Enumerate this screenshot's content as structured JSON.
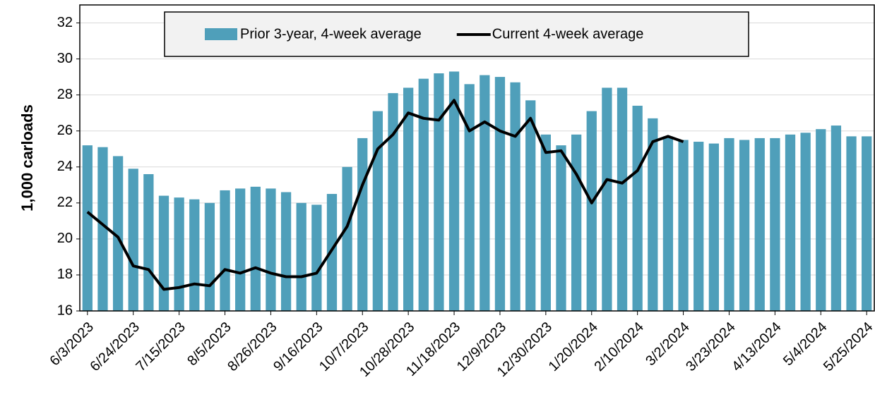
{
  "chart_data": {
    "type": "bar",
    "y_label": "1,000 carloads",
    "categories": [
      "6/3/2023",
      null,
      null,
      "6/24/2023",
      null,
      null,
      "7/15/2023",
      null,
      null,
      "8/5/2023",
      null,
      null,
      "8/26/2023",
      null,
      null,
      "9/16/2023",
      null,
      null,
      "10/7/2023",
      null,
      null,
      "10/28/2023",
      null,
      null,
      "11/18/2023",
      null,
      null,
      "12/9/2023",
      null,
      null,
      "12/30/2023",
      null,
      null,
      "1/20/2024",
      null,
      null,
      "2/10/2024",
      null,
      null,
      "3/2/2024",
      null,
      null,
      "3/23/2024",
      null,
      null,
      "4/13/2024",
      null,
      null,
      "5/4/2024",
      null,
      null,
      "5/25/2024"
    ],
    "series": [
      {
        "name": "Prior 3-year, 4-week average",
        "type": "bar",
        "color": "#4f9fba",
        "values": [
          25.2,
          25.1,
          24.6,
          23.9,
          23.6,
          22.4,
          22.3,
          22.2,
          22.0,
          22.7,
          22.8,
          22.9,
          22.8,
          22.6,
          22.0,
          21.9,
          22.5,
          24.0,
          25.6,
          27.1,
          28.1,
          28.4,
          28.9,
          29.2,
          29.3,
          28.6,
          29.1,
          29.0,
          28.7,
          27.7,
          25.8,
          25.2,
          25.8,
          27.1,
          28.4,
          28.4,
          27.4,
          26.7,
          25.7,
          25.5,
          25.4,
          25.3,
          25.6,
          25.5,
          25.6,
          25.6,
          25.8,
          25.9,
          26.1,
          26.3,
          25.7,
          25.7
        ]
      },
      {
        "name": "Current 4-week average",
        "type": "line",
        "color": "#000000",
        "values": [
          21.5,
          20.8,
          20.1,
          18.5,
          18.3,
          17.2,
          17.3,
          17.5,
          17.4,
          18.3,
          18.1,
          18.4,
          18.1,
          17.9,
          17.9,
          18.1,
          19.4,
          20.7,
          23.0,
          25.0,
          25.8,
          27.0,
          26.7,
          26.6,
          27.7,
          26.0,
          26.5,
          26.0,
          25.7,
          26.7,
          24.8,
          24.9,
          23.6,
          22.0,
          23.3,
          23.1,
          23.8,
          25.4,
          25.7,
          25.4,
          null,
          null,
          null,
          null,
          null,
          null,
          null,
          null,
          null,
          null,
          null,
          null
        ]
      }
    ],
    "ylim": [
      16,
      33
    ],
    "yticks": [
      16,
      18,
      20,
      22,
      24,
      26,
      28,
      30,
      32
    ],
    "grid": true,
    "legend": "top"
  }
}
